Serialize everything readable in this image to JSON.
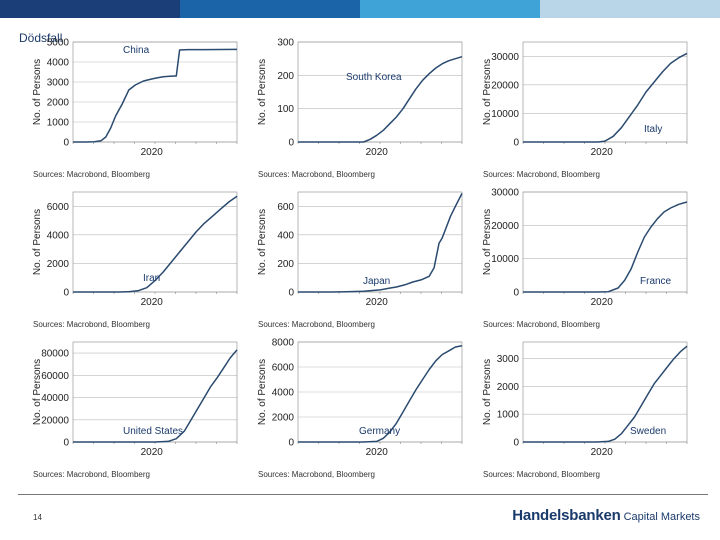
{
  "header": {
    "title": "Dödsfall",
    "bar_colors": [
      "#1b3d78",
      "#1b64a8",
      "#3fa3d8",
      "#b9d6e8"
    ]
  },
  "footer": {
    "page_number": "14",
    "brand_name": "Handelsbanken",
    "brand_sub": "Capital Markets",
    "brand_color": "#1a3a6b"
  },
  "styles": {
    "line_color": "#2a4a6f",
    "grid_color": "#bbbbbb",
    "frame_color": "#888888",
    "label_color": "#1a3a6b"
  },
  "chart_data": [
    {
      "type": "line",
      "country": "China",
      "title": "China",
      "label_pos": "top-left",
      "ylabel": "No. of Persons",
      "xlabel": "",
      "xtick_label": "2020",
      "ylim": [
        0,
        5000
      ],
      "yticks": [
        0,
        1000,
        2000,
        3000,
        4000,
        5000
      ],
      "source": "Sources: Macrobond, Bloomberg",
      "x": [
        0,
        0.08,
        0.13,
        0.17,
        0.2,
        0.23,
        0.26,
        0.3,
        0.34,
        0.38,
        0.43,
        0.48,
        0.52,
        0.55,
        0.59,
        0.62,
        0.63,
        0.65,
        0.7,
        0.8,
        0.9,
        1.0
      ],
      "y": [
        0,
        0,
        10,
        60,
        250,
        700,
        1300,
        1900,
        2600,
        2850,
        3050,
        3150,
        3220,
        3260,
        3285,
        3300,
        3300,
        4600,
        4620,
        4620,
        4625,
        4630
      ]
    },
    {
      "type": "line",
      "country": "South Korea",
      "title": "South Korea",
      "label_pos": "top-right",
      "ylabel": "No. of Persons",
      "xlabel": "",
      "xtick_label": "2020",
      "ylim": [
        0,
        300
      ],
      "yticks": [
        0,
        100,
        200,
        300
      ],
      "source": "Sources: Macrobond, Bloomberg",
      "x": [
        0,
        0.3,
        0.4,
        0.44,
        0.48,
        0.52,
        0.56,
        0.6,
        0.64,
        0.68,
        0.72,
        0.76,
        0.8,
        0.84,
        0.88,
        0.92,
        0.96,
        1.0
      ],
      "y": [
        0,
        0,
        0,
        8,
        20,
        35,
        55,
        75,
        100,
        130,
        160,
        185,
        205,
        222,
        235,
        244,
        250,
        256
      ]
    },
    {
      "type": "line",
      "country": "Italy",
      "title": "Italy",
      "label_pos": "bottom-right",
      "ylabel": "No. of Persons",
      "xlabel": "",
      "xtick_label": "2020",
      "ylim": [
        0,
        35000
      ],
      "yticks": [
        0,
        10000,
        20000,
        30000
      ],
      "source": "Sources: Macrobond, Bloomberg",
      "x": [
        0,
        0.4,
        0.46,
        0.5,
        0.55,
        0.6,
        0.65,
        0.7,
        0.75,
        0.8,
        0.85,
        0.9,
        0.95,
        1.0
      ],
      "y": [
        0,
        0,
        0,
        300,
        2000,
        5000,
        9000,
        13000,
        17500,
        21000,
        24500,
        27500,
        29500,
        31000
      ]
    },
    {
      "type": "line",
      "country": "Iran",
      "title": "Iran",
      "label_pos": "bottom-center",
      "ylabel": "No. of Persons",
      "xlabel": "",
      "xtick_label": "2020",
      "ylim": [
        0,
        7000
      ],
      "yticks": [
        0,
        2000,
        4000,
        6000
      ],
      "source": "Sources: Macrobond, Bloomberg",
      "x": [
        0,
        0.28,
        0.34,
        0.4,
        0.45,
        0.5,
        0.55,
        0.6,
        0.65,
        0.7,
        0.75,
        0.8,
        0.85,
        0.9,
        0.95,
        1.0
      ],
      "y": [
        0,
        0,
        20,
        100,
        300,
        800,
        1400,
        2100,
        2800,
        3500,
        4200,
        4800,
        5300,
        5800,
        6300,
        6700
      ]
    },
    {
      "type": "line",
      "country": "Japan",
      "title": "Japan",
      "label_pos": "bottom-center",
      "ylabel": "No. of Persons",
      "xlabel": "",
      "xtick_label": "2020",
      "ylim": [
        0,
        700
      ],
      "yticks": [
        0,
        200,
        400,
        600
      ],
      "source": "Sources: Macrobond, Bloomberg",
      "x": [
        0,
        0.2,
        0.3,
        0.4,
        0.5,
        0.55,
        0.6,
        0.65,
        0.7,
        0.75,
        0.8,
        0.83,
        0.86,
        0.88,
        0.9,
        0.93,
        0.96,
        1.0
      ],
      "y": [
        0,
        0,
        2,
        5,
        15,
        25,
        35,
        50,
        70,
        85,
        110,
        170,
        340,
        380,
        440,
        530,
        600,
        690
      ]
    },
    {
      "type": "line",
      "country": "France",
      "title": "France",
      "label_pos": "bottom-right",
      "ylabel": "No. of Persons",
      "xlabel": "",
      "xtick_label": "2020",
      "ylim": [
        0,
        30000
      ],
      "yticks": [
        0,
        10000,
        20000,
        30000
      ],
      "source": "Sources: Macrobond, Bloomberg",
      "x": [
        0,
        0.45,
        0.52,
        0.58,
        0.62,
        0.66,
        0.7,
        0.74,
        0.78,
        0.82,
        0.86,
        0.9,
        0.95,
        1.0
      ],
      "y": [
        0,
        0,
        100,
        1200,
        3500,
        7000,
        12000,
        16500,
        19500,
        22000,
        24000,
        25200,
        26300,
        27000
      ]
    },
    {
      "type": "line",
      "country": "United States",
      "title": "United States",
      "label_pos": "bottom-center",
      "ylabel": "No. of Persons",
      "xlabel": "",
      "xtick_label": "2020",
      "ylim": [
        0,
        90000
      ],
      "yticks": [
        0,
        20000,
        40000,
        60000,
        80000
      ],
      "source": "Sources: Macrobond, Bloomberg",
      "x": [
        0,
        0.5,
        0.58,
        0.63,
        0.68,
        0.72,
        0.76,
        0.8,
        0.84,
        0.88,
        0.92,
        0.96,
        1.0
      ],
      "y": [
        0,
        0,
        500,
        3000,
        10000,
        20000,
        30000,
        40000,
        50000,
        58000,
        67000,
        76000,
        83000
      ]
    },
    {
      "type": "line",
      "country": "Germany",
      "title": "Germany",
      "label_pos": "bottom-center",
      "ylabel": "No. of Persons",
      "xlabel": "",
      "xtick_label": "2020",
      "ylim": [
        0,
        8000
      ],
      "yticks": [
        0,
        2000,
        4000,
        6000,
        8000
      ],
      "source": "Sources: Macrobond, Bloomberg",
      "x": [
        0,
        0.4,
        0.48,
        0.52,
        0.56,
        0.6,
        0.64,
        0.68,
        0.72,
        0.76,
        0.8,
        0.84,
        0.88,
        0.92,
        0.96,
        1.0
      ],
      "y": [
        0,
        0,
        50,
        300,
        800,
        1500,
        2400,
        3300,
        4200,
        5000,
        5800,
        6500,
        7000,
        7300,
        7600,
        7700
      ]
    },
    {
      "type": "line",
      "country": "Sweden",
      "title": "Sweden",
      "label_pos": "bottom-right",
      "ylabel": "No. of Persons",
      "xlabel": "",
      "xtick_label": "2020",
      "ylim": [
        0,
        3600
      ],
      "yticks": [
        0,
        1000,
        2000,
        3000
      ],
      "source": "Sources: Macrobond, Bloomberg",
      "x": [
        0,
        0.45,
        0.52,
        0.56,
        0.6,
        0.64,
        0.68,
        0.72,
        0.76,
        0.8,
        0.84,
        0.88,
        0.92,
        0.96,
        1.0
      ],
      "y": [
        0,
        0,
        20,
        100,
        300,
        600,
        900,
        1300,
        1700,
        2100,
        2400,
        2700,
        3000,
        3250,
        3450
      ]
    }
  ]
}
